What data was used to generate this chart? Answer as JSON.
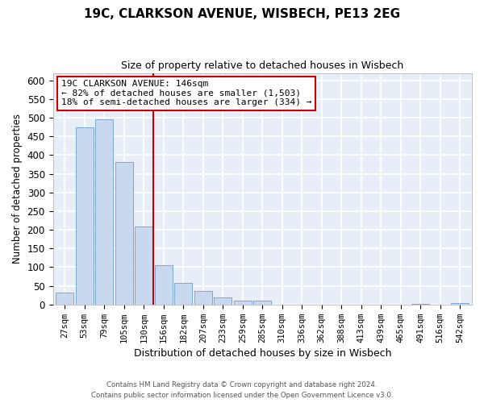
{
  "title": "19C, CLARKSON AVENUE, WISBECH, PE13 2EG",
  "subtitle": "Size of property relative to detached houses in Wisbech",
  "xlabel": "Distribution of detached houses by size in Wisbech",
  "ylabel": "Number of detached properties",
  "bar_labels": [
    "27sqm",
    "53sqm",
    "79sqm",
    "105sqm",
    "130sqm",
    "156sqm",
    "182sqm",
    "207sqm",
    "233sqm",
    "259sqm",
    "285sqm",
    "310sqm",
    "336sqm",
    "362sqm",
    "388sqm",
    "413sqm",
    "439sqm",
    "465sqm",
    "491sqm",
    "516sqm",
    "542sqm"
  ],
  "bar_values": [
    32,
    475,
    497,
    382,
    210,
    105,
    57,
    36,
    20,
    10,
    11,
    0,
    0,
    0,
    0,
    0,
    0,
    0,
    2,
    0,
    3
  ],
  "bar_color": "#c8d8ee",
  "bar_edge_color": "#7ba8d4",
  "vline_color": "#cc0000",
  "ylim": [
    0,
    620
  ],
  "yticks": [
    0,
    50,
    100,
    150,
    200,
    250,
    300,
    350,
    400,
    450,
    500,
    550,
    600
  ],
  "annotation_title": "19C CLARKSON AVENUE: 146sqm",
  "annotation_line1": "← 82% of detached houses are smaller (1,503)",
  "annotation_line2": "18% of semi-detached houses are larger (334) →",
  "footer1": "Contains HM Land Registry data © Crown copyright and database right 2024.",
  "footer2": "Contains public sector information licensed under the Open Government Licence v3.0.",
  "plot_bg_color": "#e8eef8",
  "fig_bg_color": "#ffffff",
  "grid_color": "#ffffff"
}
